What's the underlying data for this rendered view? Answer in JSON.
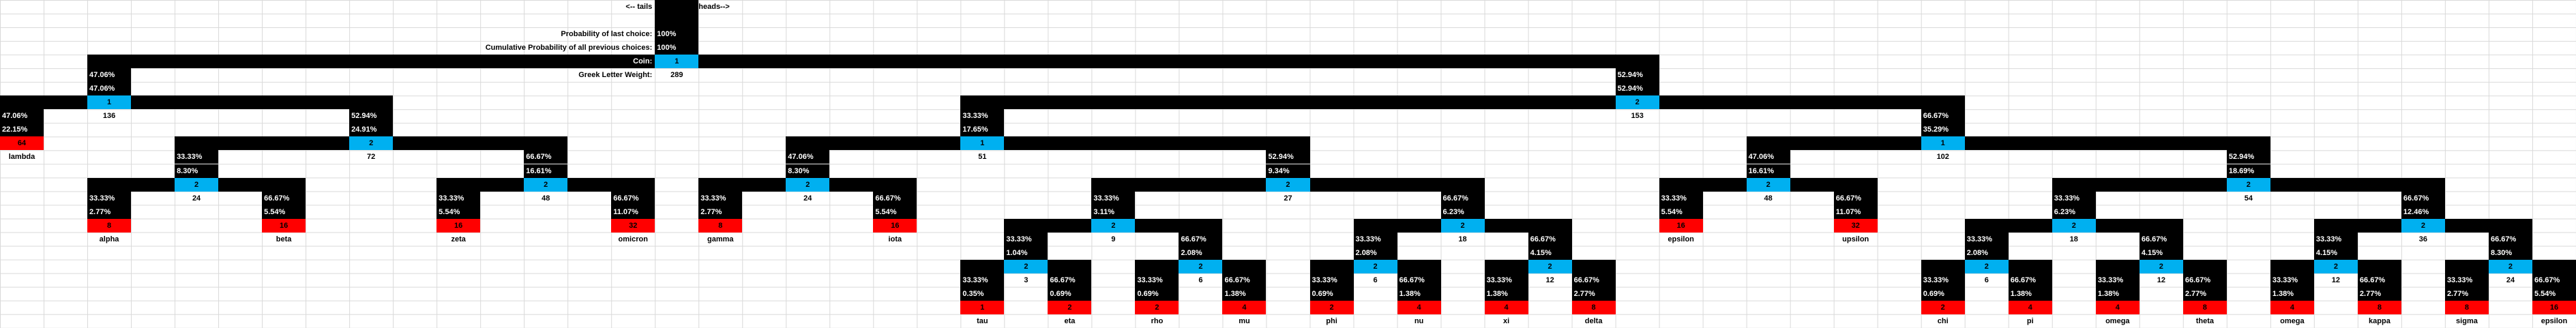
{
  "header": {
    "tails": "<-- tails",
    "heads": "heads-->"
  },
  "labels": {
    "prob_last": "Probability of last choice:",
    "cumulative": "Cumulative Probability of all previous choices:",
    "coin": "Coin:",
    "weight": "Greek Letter Weight:"
  },
  "tree": {
    "prob": "100%",
    "cumulative": "100%",
    "coin": "1",
    "weight": "289",
    "children": [
      {
        "prob": "47.06%",
        "cumulative": "47.06%",
        "coin": "1",
        "weight": "136",
        "children": [
          {
            "prob": "47.06%",
            "cumulative": "22.15%",
            "value": "64",
            "name": "lambda"
          },
          {
            "prob": "52.94%",
            "cumulative": "24.91%",
            "coin": "2",
            "weight": "72",
            "children": [
              {
                "prob": "33.33%",
                "cumulative": "8.30%",
                "coin": "2",
                "weight": "24",
                "children": [
                  {
                    "prob": "33.33%",
                    "cumulative": "2.77%",
                    "value": "8",
                    "name": "alpha"
                  },
                  {
                    "prob": "66.67%",
                    "cumulative": "5.54%",
                    "value": "16",
                    "name": "beta"
                  }
                ]
              },
              {
                "prob": "66.67%",
                "cumulative": "16.61%",
                "coin": "2",
                "weight": "48",
                "children": [
                  {
                    "prob": "33.33%",
                    "cumulative": "5.54%",
                    "value": "16",
                    "name": "zeta"
                  },
                  {
                    "prob": "66.67%",
                    "cumulative": "11.07%",
                    "value": "32",
                    "name": "omicron"
                  }
                ]
              }
            ]
          }
        ]
      },
      {
        "prob": "52.94%",
        "cumulative": "52.94%",
        "coin": "2",
        "weight": "153",
        "children": [
          {
            "prob": "33.33%",
            "cumulative": "17.65%",
            "coin": "1",
            "weight": "51",
            "children": [
              {
                "prob": "47.06%",
                "cumulative": "8.30%",
                "coin": "2",
                "weight": "24",
                "children": [
                  {
                    "prob": "33.33%",
                    "cumulative": "2.77%",
                    "value": "8",
                    "name": "gamma"
                  },
                  {
                    "prob": "66.67%",
                    "cumulative": "5.54%",
                    "value": "16",
                    "name": "iota"
                  }
                ]
              },
              {
                "prob": "52.94%",
                "cumulative": "9.34%",
                "coin": "2",
                "weight": "27",
                "children": [
                  {
                    "prob": "33.33%",
                    "cumulative": "3.11%",
                    "coin": "2",
                    "weight": "9",
                    "children": [
                      {
                        "prob": "33.33%",
                        "cumulative": "1.04%",
                        "coin": "2",
                        "weight": "3",
                        "children": [
                          {
                            "prob": "33.33%",
                            "cumulative": "0.35%",
                            "value": "1",
                            "name": "tau"
                          },
                          {
                            "prob": "66.67%",
                            "cumulative": "0.69%",
                            "value": "2",
                            "name": "eta"
                          }
                        ]
                      },
                      {
                        "prob": "66.67%",
                        "cumulative": "2.08%",
                        "coin": "2",
                        "weight": "6",
                        "children": [
                          {
                            "prob": "33.33%",
                            "cumulative": "0.69%",
                            "value": "2",
                            "name": "rho"
                          },
                          {
                            "prob": "66.67%",
                            "cumulative": "1.38%",
                            "value": "4",
                            "name": "mu"
                          }
                        ]
                      }
                    ]
                  },
                  {
                    "prob": "66.67%",
                    "cumulative": "6.23%",
                    "coin": "2",
                    "weight": "18",
                    "children": [
                      {
                        "prob": "33.33%",
                        "cumulative": "2.08%",
                        "coin": "2",
                        "weight": "6",
                        "children": [
                          {
                            "prob": "33.33%",
                            "cumulative": "0.69%",
                            "value": "2",
                            "name": "phi"
                          },
                          {
                            "prob": "66.67%",
                            "cumulative": "1.38%",
                            "value": "4",
                            "name": "nu"
                          }
                        ]
                      },
                      {
                        "prob": "66.67%",
                        "cumulative": "4.15%",
                        "coin": "2",
                        "weight": "12",
                        "children": [
                          {
                            "prob": "33.33%",
                            "cumulative": "1.38%",
                            "value": "4",
                            "name": "xi"
                          },
                          {
                            "prob": "66.67%",
                            "cumulative": "2.77%",
                            "value": "8",
                            "name": "delta"
                          }
                        ]
                      }
                    ]
                  }
                ]
              }
            ]
          },
          {
            "prob": "66.67%",
            "cumulative": "35.29%",
            "coin": "1",
            "weight": "102",
            "children": [
              {
                "prob": "47.06%",
                "cumulative": "16.61%",
                "coin": "2",
                "weight": "48",
                "children": [
                  {
                    "prob": "33.33%",
                    "cumulative": "5.54%",
                    "value": "16",
                    "name": "epsilon"
                  },
                  {
                    "prob": "66.67%",
                    "cumulative": "11.07%",
                    "value": "32",
                    "name": "upsilon"
                  }
                ]
              },
              {
                "prob": "52.94%",
                "cumulative": "18.69%",
                "coin": "2",
                "weight": "54",
                "children": [
                  {
                    "prob": "33.33%",
                    "cumulative": "6.23%",
                    "coin": "2",
                    "weight": "18",
                    "children": [
                      {
                        "prob": "33.33%",
                        "cumulative": "2.08%",
                        "coin": "2",
                        "weight": "6",
                        "children": [
                          {
                            "prob": "33.33%",
                            "cumulative": "0.69%",
                            "value": "2",
                            "name": "chi"
                          },
                          {
                            "prob": "66.67%",
                            "cumulative": "1.38%",
                            "value": "4",
                            "name": "pi"
                          }
                        ]
                      },
                      {
                        "prob": "66.67%",
                        "cumulative": "4.15%",
                        "coin": "2",
                        "weight": "12",
                        "children": [
                          {
                            "prob": "33.33%",
                            "cumulative": "1.38%",
                            "value": "4",
                            "name": "omega"
                          },
                          {
                            "prob": "66.67%",
                            "cumulative": "2.77%",
                            "value": "8",
                            "name": "theta"
                          }
                        ]
                      }
                    ]
                  },
                  {
                    "prob": "66.67%",
                    "cumulative": "12.46%",
                    "coin": "2",
                    "weight": "36",
                    "children": [
                      {
                        "prob": "33.33%",
                        "cumulative": "4.15%",
                        "coin": "2",
                        "weight": "12",
                        "children": [
                          {
                            "prob": "33.33%",
                            "cumulative": "1.38%",
                            "value": "4",
                            "name": "omega"
                          },
                          {
                            "prob": "66.67%",
                            "cumulative": "2.77%",
                            "value": "8",
                            "name": "kappa"
                          }
                        ]
                      },
                      {
                        "prob": "66.67%",
                        "cumulative": "8.30%",
                        "coin": "2",
                        "weight": "24",
                        "children": [
                          {
                            "prob": "33.33%",
                            "cumulative": "2.77%",
                            "value": "8",
                            "name": "sigma"
                          },
                          {
                            "prob": "66.67%",
                            "cumulative": "5.54%",
                            "value": "16",
                            "name": "epsilon"
                          }
                        ]
                      }
                    ]
                  }
                ]
              }
            ]
          }
        ]
      }
    ]
  }
}
